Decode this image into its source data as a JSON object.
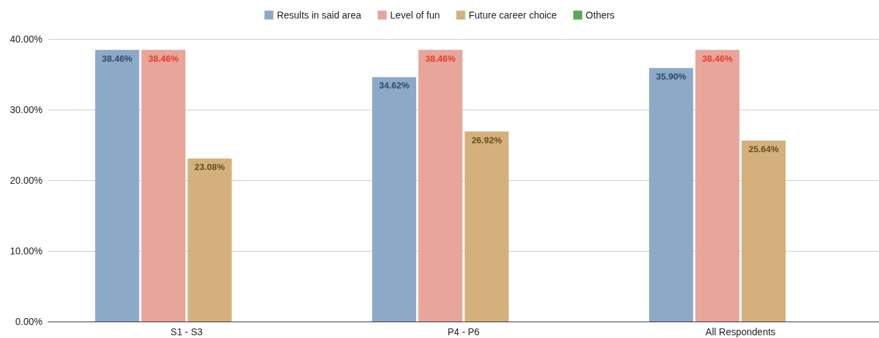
{
  "chart_data": {
    "type": "bar",
    "categories": [
      "S1 - S3",
      "P4 - P6",
      "All Respondents"
    ],
    "series": [
      {
        "name": "Results in said area",
        "color": "#8ca9c8",
        "values": [
          38.46,
          34.62,
          35.9
        ],
        "value_labels": [
          "38.46%",
          "34.62%",
          "35.90%"
        ]
      },
      {
        "name": "Level of fun",
        "color": "#e8a59a",
        "values": [
          38.46,
          38.46,
          38.46
        ],
        "value_labels": [
          "38.46%",
          "38.46%",
          "38.46%"
        ]
      },
      {
        "name": "Future career choice",
        "color": "#d4b07d",
        "values": [
          23.08,
          26.92,
          25.64
        ],
        "value_labels": [
          "23.08%",
          "26.92%",
          "25.64%"
        ]
      },
      {
        "name": "Others",
        "color": "#5aa55a",
        "values": [
          null,
          null,
          null
        ]
      }
    ],
    "ylim": [
      0,
      40
    ],
    "yticks": [
      {
        "value": 0,
        "label": "0.00%"
      },
      {
        "value": 10,
        "label": "10.00%"
      },
      {
        "value": 20,
        "label": "20.00%"
      },
      {
        "value": 30,
        "label": "30.00%"
      },
      {
        "value": 40,
        "label": "40.00%"
      }
    ],
    "grid": "y",
    "legend": "top"
  }
}
